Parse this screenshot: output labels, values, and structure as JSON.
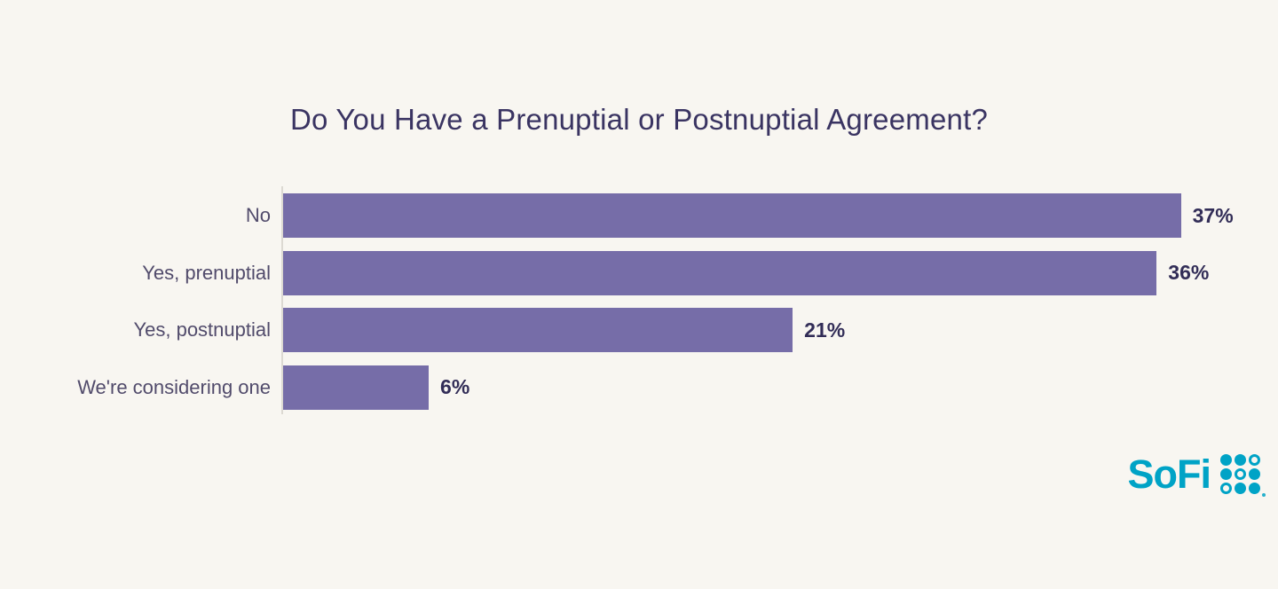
{
  "chart_data": {
    "type": "bar",
    "orientation": "horizontal",
    "title": "Do You Have a Prenuptial or Postnuptial Agreement?",
    "categories": [
      "No",
      "Yes, prenuptial",
      "Yes, postnuptial",
      "We're considering one"
    ],
    "values": [
      37,
      36,
      21,
      6
    ],
    "value_labels": [
      "37%",
      "36%",
      "21%",
      "6%"
    ],
    "xlabel": "",
    "ylabel": "",
    "xlim": [
      0,
      41
    ],
    "grid": false,
    "legend": false,
    "bar_color": "#766da8",
    "value_label_color": "#322d57",
    "category_label_color": "#514b6b",
    "title_color": "#3a3462",
    "axis_line_color": "#dcd9d2",
    "background_color": "#f8f6f1"
  },
  "logo": {
    "text": "SoFi",
    "color": "#00a3c6",
    "dots_icon": "sofi-dots-grid",
    "dots_pattern": [
      [
        1,
        1,
        0
      ],
      [
        1,
        0,
        1
      ],
      [
        0,
        1,
        1
      ]
    ]
  }
}
